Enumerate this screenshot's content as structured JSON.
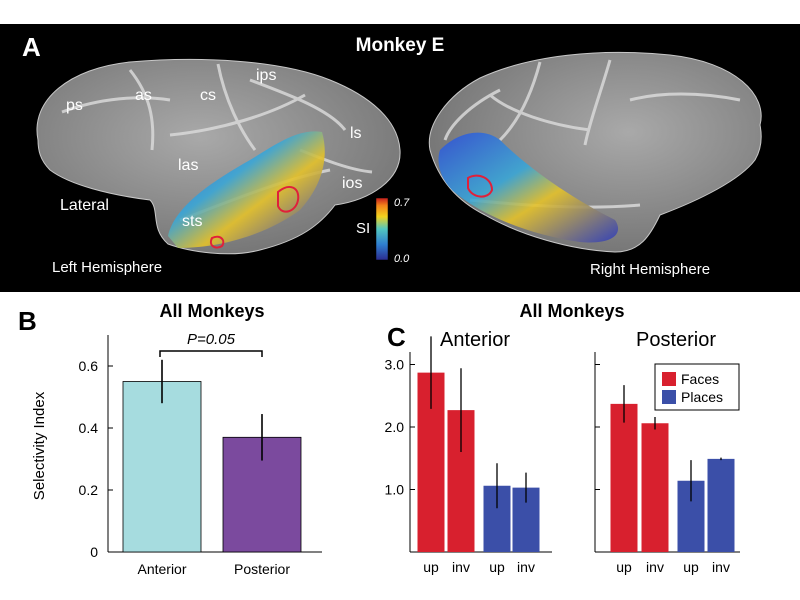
{
  "panel_a": {
    "label": "A",
    "title": "Monkey E",
    "lateral": "Lateral",
    "left_hemisphere": "Left Hemisphere",
    "right_hemisphere": "Right Hemisphere",
    "sulci": [
      "ps",
      "as",
      "cs",
      "ips",
      "las",
      "ls",
      "ios",
      "sts"
    ],
    "colorbar": {
      "label": "SI",
      "max": "0.7",
      "min": "0.0"
    },
    "colors": {
      "background": "#000000",
      "brain": "#9a9a9a",
      "roi": "#e0203a"
    }
  },
  "chart_data": [
    {
      "panel": "B",
      "type": "bar",
      "title": "All Monkeys",
      "categories": [
        "Anterior",
        "Posterior"
      ],
      "values": [
        0.55,
        0.37
      ],
      "errors": [
        0.07,
        0.075
      ],
      "ylabel": "Selectivity Index",
      "ylim": [
        0,
        0.7
      ],
      "yticks": [
        "0",
        "0.2",
        "0.4",
        "0.6"
      ],
      "colors": [
        "#a6dcdf",
        "#7b4a9e"
      ],
      "annotation": "P=0.05"
    },
    {
      "panel": "C",
      "type": "bar",
      "title": "All Monkeys",
      "subtitle": "Anterior",
      "categories": [
        "up",
        "inv",
        "up",
        "inv"
      ],
      "values": [
        2.87,
        2.27,
        1.06,
        1.03
      ],
      "errors": [
        0.58,
        0.67,
        0.36,
        0.24
      ],
      "ylim": [
        0.0,
        3.2
      ],
      "yticks": [
        "1.0",
        "2.0",
        "3.0"
      ],
      "colors": [
        "#d8202e",
        "#d8202e",
        "#3b4fa8",
        "#3b4fa8"
      ]
    },
    {
      "panel": "C",
      "type": "bar",
      "subtitle": "Posterior",
      "categories": [
        "up",
        "inv",
        "up",
        "inv"
      ],
      "values": [
        2.37,
        2.06,
        1.14,
        1.49
      ],
      "errors": [
        0.3,
        0.1,
        0.33,
        0.02
      ],
      "ylim": [
        0.0,
        3.2
      ],
      "legend": [
        "Faces",
        "Places"
      ],
      "legend_colors": [
        "#d8202e",
        "#3b4fa8"
      ],
      "colors": [
        "#d8202e",
        "#d8202e",
        "#3b4fa8",
        "#3b4fa8"
      ]
    }
  ],
  "panel_labels": {
    "b": "B",
    "c": "C"
  }
}
